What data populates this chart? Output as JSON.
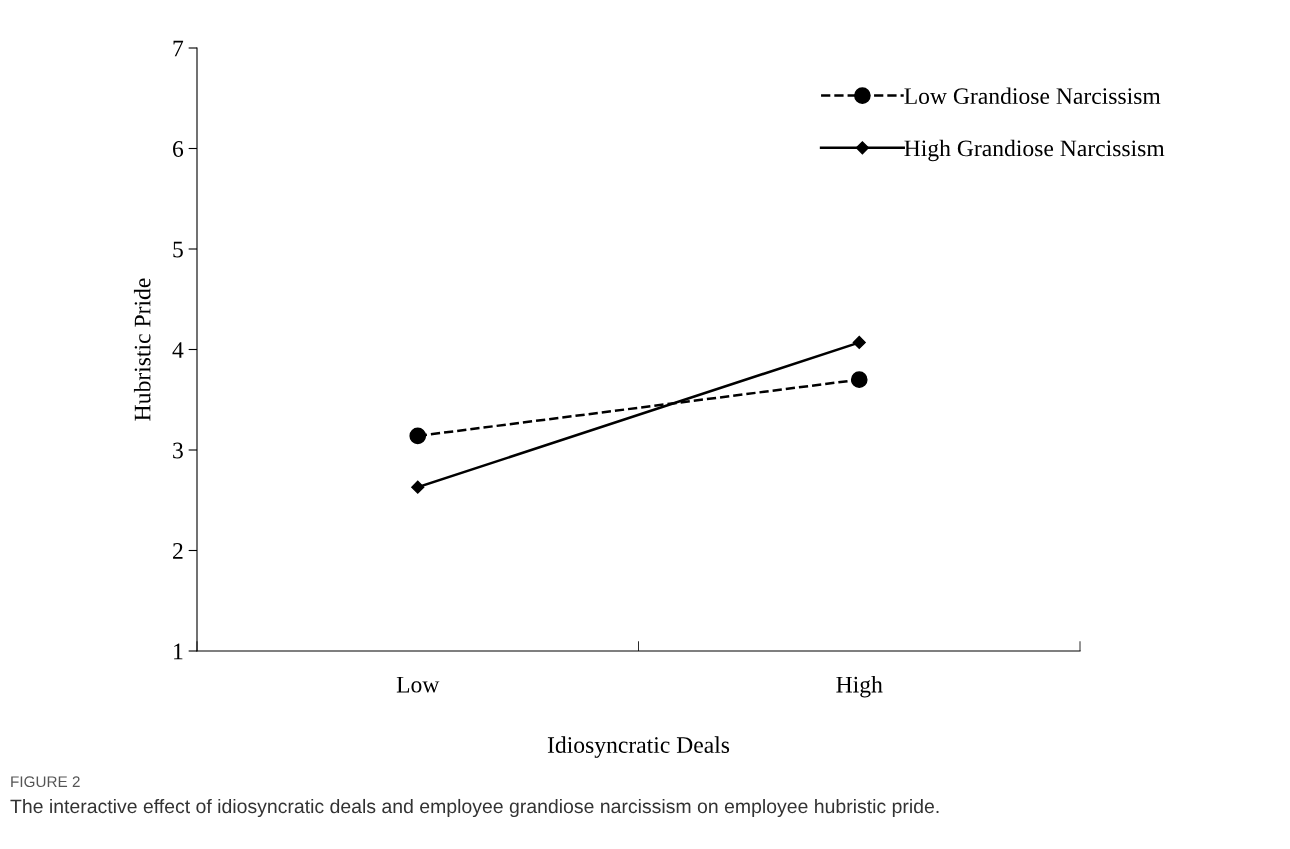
{
  "chart_data": {
    "type": "line",
    "categories": [
      "Low",
      "High"
    ],
    "xlabel": "Idiosyncratic Deals",
    "ylabel": "Hubristic Pride",
    "ylim": [
      1,
      7
    ],
    "yticks": [
      1,
      2,
      3,
      4,
      5,
      6,
      7
    ],
    "series": [
      {
        "name": "Low Grandiose Narcissism",
        "color": "#000000",
        "values": [
          3.14,
          3.7
        ],
        "marker": "circle",
        "line_style": "dashed"
      },
      {
        "name": "High Grandiose Narcissism",
        "color": "#000000",
        "values": [
          2.63,
          4.07
        ],
        "marker": "diamond",
        "line_style": "solid"
      }
    ],
    "legend": "top right",
    "grid": false,
    "annotations": [
      "FIGURE 2",
      "The interactive effect of idiosyncratic deals and employee grandiose narcissism on employee hubristic pride."
    ]
  }
}
